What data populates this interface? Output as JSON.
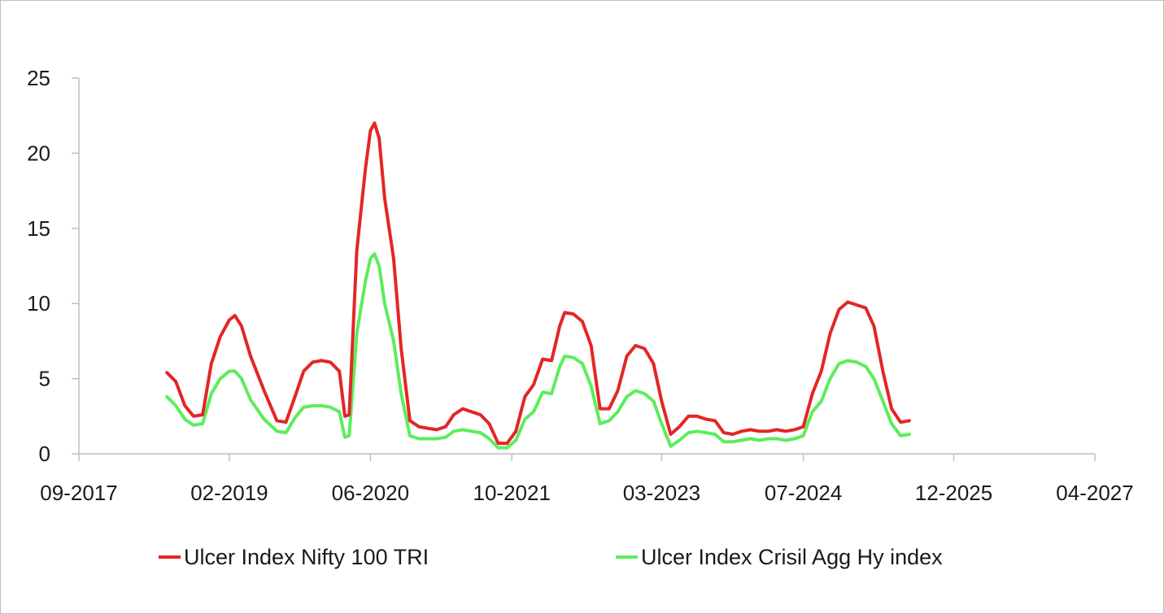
{
  "chart_data": {
    "type": "line",
    "x_axis": {
      "type": "date",
      "ticks": [
        "09-2017",
        "02-2019",
        "06-2020",
        "10-2021",
        "03-2023",
        "07-2024",
        "12-2025",
        "04-2027"
      ],
      "range": [
        "2017-09-01",
        "2027-04-01"
      ]
    },
    "y_axis": {
      "range": [
        0,
        25
      ],
      "ticks": [
        0,
        5,
        10,
        15,
        20,
        25
      ]
    },
    "grid": false,
    "legend_position": "bottom",
    "series": [
      {
        "name": "Ulcer Index Nifty 100 TRI",
        "color": "#e32626",
        "points": [
          [
            "2018-07-01",
            5.4
          ],
          [
            "2018-08-01",
            4.8
          ],
          [
            "2018-09-01",
            3.2
          ],
          [
            "2018-10-01",
            2.5
          ],
          [
            "2018-11-01",
            2.6
          ],
          [
            "2018-12-01",
            6.0
          ],
          [
            "2019-01-01",
            7.8
          ],
          [
            "2019-02-01",
            8.9
          ],
          [
            "2019-02-20",
            9.2
          ],
          [
            "2019-03-15",
            8.5
          ],
          [
            "2019-04-15",
            6.5
          ],
          [
            "2019-06-01",
            4.2
          ],
          [
            "2019-07-15",
            2.2
          ],
          [
            "2019-08-15",
            2.1
          ],
          [
            "2019-09-15",
            3.8
          ],
          [
            "2019-10-15",
            5.5
          ],
          [
            "2019-11-15",
            6.1
          ],
          [
            "2019-12-15",
            6.2
          ],
          [
            "2020-01-15",
            6.1
          ],
          [
            "2020-02-15",
            5.5
          ],
          [
            "2020-03-05",
            2.5
          ],
          [
            "2020-03-20",
            2.6
          ],
          [
            "2020-04-15",
            13.5
          ],
          [
            "2020-05-15",
            19.0
          ],
          [
            "2020-06-01",
            21.5
          ],
          [
            "2020-06-15",
            22.0
          ],
          [
            "2020-07-01",
            21.0
          ],
          [
            "2020-07-20",
            17.0
          ],
          [
            "2020-08-20",
            13.0
          ],
          [
            "2020-09-15",
            7.0
          ],
          [
            "2020-10-15",
            2.2
          ],
          [
            "2020-11-15",
            1.8
          ],
          [
            "2020-12-15",
            1.7
          ],
          [
            "2021-01-15",
            1.6
          ],
          [
            "2021-02-15",
            1.8
          ],
          [
            "2021-03-15",
            2.6
          ],
          [
            "2021-04-15",
            3.0
          ],
          [
            "2021-05-15",
            2.8
          ],
          [
            "2021-06-15",
            2.6
          ],
          [
            "2021-07-15",
            2.0
          ],
          [
            "2021-08-15",
            0.7
          ],
          [
            "2021-09-15",
            0.7
          ],
          [
            "2021-10-15",
            1.5
          ],
          [
            "2021-11-15",
            3.8
          ],
          [
            "2021-12-15",
            4.6
          ],
          [
            "2022-01-15",
            6.3
          ],
          [
            "2022-02-15",
            6.2
          ],
          [
            "2022-03-15",
            8.5
          ],
          [
            "2022-04-01",
            9.4
          ],
          [
            "2022-05-01",
            9.3
          ],
          [
            "2022-06-01",
            8.8
          ],
          [
            "2022-07-01",
            7.2
          ],
          [
            "2022-08-01",
            3.0
          ],
          [
            "2022-09-01",
            3.0
          ],
          [
            "2022-10-01",
            4.2
          ],
          [
            "2022-11-01",
            6.5
          ],
          [
            "2022-12-01",
            7.2
          ],
          [
            "2023-01-01",
            7.0
          ],
          [
            "2023-02-01",
            6.0
          ],
          [
            "2023-03-01",
            3.5
          ],
          [
            "2023-04-01",
            1.3
          ],
          [
            "2023-05-01",
            1.8
          ],
          [
            "2023-06-01",
            2.5
          ],
          [
            "2023-07-01",
            2.5
          ],
          [
            "2023-08-01",
            2.3
          ],
          [
            "2023-09-01",
            2.2
          ],
          [
            "2023-10-01",
            1.4
          ],
          [
            "2023-11-01",
            1.3
          ],
          [
            "2023-12-01",
            1.5
          ],
          [
            "2024-01-01",
            1.6
          ],
          [
            "2024-02-01",
            1.5
          ],
          [
            "2024-03-01",
            1.5
          ],
          [
            "2024-04-01",
            1.6
          ],
          [
            "2024-05-01",
            1.5
          ],
          [
            "2024-06-01",
            1.6
          ],
          [
            "2024-07-01",
            1.8
          ],
          [
            "2024-08-01",
            4.0
          ],
          [
            "2024-09-01",
            5.5
          ],
          [
            "2024-10-01",
            8.0
          ],
          [
            "2024-11-01",
            9.6
          ],
          [
            "2024-12-01",
            10.1
          ],
          [
            "2025-01-01",
            9.9
          ],
          [
            "2025-02-01",
            9.7
          ],
          [
            "2025-03-01",
            8.5
          ],
          [
            "2025-04-01",
            5.5
          ],
          [
            "2025-05-01",
            3.0
          ],
          [
            "2025-06-01",
            2.1
          ],
          [
            "2025-07-01",
            2.2
          ]
        ]
      },
      {
        "name": "Ulcer Index Crisil Agg Hy index",
        "color": "#5ced5c",
        "points": [
          [
            "2018-07-01",
            3.8
          ],
          [
            "2018-08-01",
            3.2
          ],
          [
            "2018-09-01",
            2.3
          ],
          [
            "2018-10-01",
            1.9
          ],
          [
            "2018-11-01",
            2.0
          ],
          [
            "2018-12-01",
            4.0
          ],
          [
            "2019-01-01",
            5.0
          ],
          [
            "2019-02-01",
            5.5
          ],
          [
            "2019-02-20",
            5.5
          ],
          [
            "2019-03-15",
            5.0
          ],
          [
            "2019-04-15",
            3.6
          ],
          [
            "2019-06-01",
            2.3
          ],
          [
            "2019-07-15",
            1.5
          ],
          [
            "2019-08-15",
            1.4
          ],
          [
            "2019-09-15",
            2.4
          ],
          [
            "2019-10-15",
            3.1
          ],
          [
            "2019-11-15",
            3.2
          ],
          [
            "2019-12-15",
            3.2
          ],
          [
            "2020-01-15",
            3.1
          ],
          [
            "2020-02-15",
            2.8
          ],
          [
            "2020-03-05",
            1.1
          ],
          [
            "2020-03-20",
            1.2
          ],
          [
            "2020-04-15",
            8.0
          ],
          [
            "2020-05-15",
            11.5
          ],
          [
            "2020-06-01",
            13.0
          ],
          [
            "2020-06-15",
            13.3
          ],
          [
            "2020-07-01",
            12.5
          ],
          [
            "2020-07-20",
            10.0
          ],
          [
            "2020-08-20",
            7.5
          ],
          [
            "2020-09-15",
            4.0
          ],
          [
            "2020-10-15",
            1.2
          ],
          [
            "2020-11-15",
            1.0
          ],
          [
            "2020-12-15",
            1.0
          ],
          [
            "2021-01-15",
            1.0
          ],
          [
            "2021-02-15",
            1.1
          ],
          [
            "2021-03-15",
            1.5
          ],
          [
            "2021-04-15",
            1.6
          ],
          [
            "2021-05-15",
            1.5
          ],
          [
            "2021-06-15",
            1.4
          ],
          [
            "2021-07-15",
            1.0
          ],
          [
            "2021-08-15",
            0.4
          ],
          [
            "2021-09-15",
            0.4
          ],
          [
            "2021-10-15",
            0.9
          ],
          [
            "2021-11-15",
            2.3
          ],
          [
            "2021-12-15",
            2.8
          ],
          [
            "2022-01-15",
            4.1
          ],
          [
            "2022-02-15",
            4.0
          ],
          [
            "2022-03-15",
            5.8
          ],
          [
            "2022-04-01",
            6.5
          ],
          [
            "2022-05-01",
            6.4
          ],
          [
            "2022-06-01",
            6.0
          ],
          [
            "2022-07-01",
            4.5
          ],
          [
            "2022-08-01",
            2.0
          ],
          [
            "2022-09-01",
            2.2
          ],
          [
            "2022-10-01",
            2.8
          ],
          [
            "2022-11-01",
            3.8
          ],
          [
            "2022-12-01",
            4.2
          ],
          [
            "2023-01-01",
            4.0
          ],
          [
            "2023-02-01",
            3.5
          ],
          [
            "2023-03-01",
            2.0
          ],
          [
            "2023-04-01",
            0.5
          ],
          [
            "2023-05-01",
            0.9
          ],
          [
            "2023-06-01",
            1.4
          ],
          [
            "2023-07-01",
            1.5
          ],
          [
            "2023-08-01",
            1.4
          ],
          [
            "2023-09-01",
            1.3
          ],
          [
            "2023-10-01",
            0.8
          ],
          [
            "2023-11-01",
            0.8
          ],
          [
            "2023-12-01",
            0.9
          ],
          [
            "2024-01-01",
            1.0
          ],
          [
            "2024-02-01",
            0.9
          ],
          [
            "2024-03-01",
            1.0
          ],
          [
            "2024-04-01",
            1.0
          ],
          [
            "2024-05-01",
            0.9
          ],
          [
            "2024-06-01",
            1.0
          ],
          [
            "2024-07-01",
            1.2
          ],
          [
            "2024-08-01",
            2.8
          ],
          [
            "2024-09-01",
            3.5
          ],
          [
            "2024-10-01",
            5.0
          ],
          [
            "2024-11-01",
            6.0
          ],
          [
            "2024-12-01",
            6.2
          ],
          [
            "2025-01-01",
            6.1
          ],
          [
            "2025-02-01",
            5.8
          ],
          [
            "2025-03-01",
            5.0
          ],
          [
            "2025-04-01",
            3.5
          ],
          [
            "2025-05-01",
            2.0
          ],
          [
            "2025-06-01",
            1.2
          ],
          [
            "2025-07-01",
            1.3
          ]
        ]
      }
    ]
  }
}
